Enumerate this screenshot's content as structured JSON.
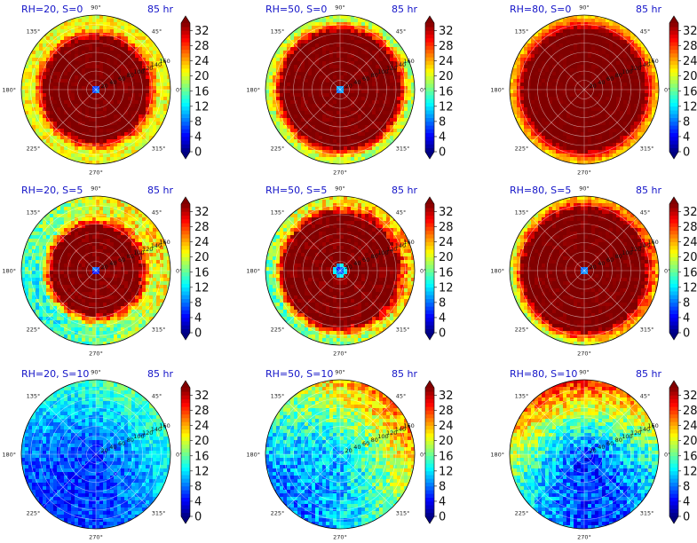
{
  "chart_data": {
    "type": "heatmap",
    "projection": "polar",
    "layout": {
      "rows": 3,
      "cols": 3
    },
    "angular_ticks": [
      "90°",
      "45°",
      "0°",
      "315°",
      "270°",
      "225°",
      "180°",
      "135°"
    ],
    "radial_ticks": [
      "20",
      "40",
      "60",
      "80",
      "100",
      "120",
      "140",
      "160"
    ],
    "rmax": 160,
    "colorbar": {
      "ticks": [
        "0",
        "4",
        "8",
        "12",
        "16",
        "20",
        "24",
        "28",
        "32"
      ],
      "range": [
        0,
        34
      ],
      "colormap": "jet",
      "extend": "both"
    },
    "panels": [
      {
        "title": "RH=20, S=0",
        "time": "85 hr",
        "eye_radius": 10,
        "wall_radius": 110,
        "inner_value": 34,
        "outer_value": 21,
        "asym_center_deg": 0,
        "asym_amplitude": 0,
        "noise": 3
      },
      {
        "title": "RH=50, S=0",
        "time": "85 hr",
        "eye_radius": 8,
        "wall_radius": 125,
        "inner_value": 34,
        "outer_value": 19,
        "asym_center_deg": 0,
        "asym_amplitude": 0,
        "noise": 3
      },
      {
        "title": "RH=80, S=0",
        "time": "85 hr",
        "eye_radius": 5,
        "wall_radius": 130,
        "inner_value": 34,
        "outer_value": 23,
        "asym_center_deg": 0,
        "asym_amplitude": 0,
        "noise": 2
      },
      {
        "title": "RH=20, S=5",
        "time": "85 hr",
        "eye_radius": 12,
        "wall_radius": 95,
        "inner_value": 34,
        "outer_value": 18,
        "asym_center_deg": 30,
        "asym_amplitude": 4,
        "noise": 4
      },
      {
        "title": "RH=50, S=5",
        "time": "85 hr",
        "eye_radius": 13,
        "wall_radius": 120,
        "inner_value": 34,
        "outer_value": 20,
        "asym_center_deg": 30,
        "asym_amplitude": 4,
        "noise": 4
      },
      {
        "title": "RH=80, S=5",
        "time": "85 hr",
        "eye_radius": 9,
        "wall_radius": 130,
        "inner_value": 34,
        "outer_value": 22,
        "asym_center_deg": 30,
        "asym_amplitude": 3,
        "noise": 3
      },
      {
        "title": "RH=20, S=10",
        "time": "85 hr",
        "eye_radius": 0,
        "wall_radius": 0,
        "inner_value": 6,
        "outer_value": 11,
        "asym_center_deg": 60,
        "asym_amplitude": 5,
        "noise": 3
      },
      {
        "title": "RH=50, S=10",
        "time": "85 hr",
        "eye_radius": 0,
        "wall_radius": 0,
        "inner_value": 11,
        "outer_value": 17,
        "asym_center_deg": 45,
        "asym_amplitude": 9,
        "noise": 4
      },
      {
        "title": "RH=80, S=10",
        "time": "85 hr",
        "eye_radius": 0,
        "wall_radius": 0,
        "inner_value": 6,
        "outer_value": 18,
        "asym_center_deg": 100,
        "asym_amplitude": 11,
        "noise": 4
      }
    ]
  }
}
